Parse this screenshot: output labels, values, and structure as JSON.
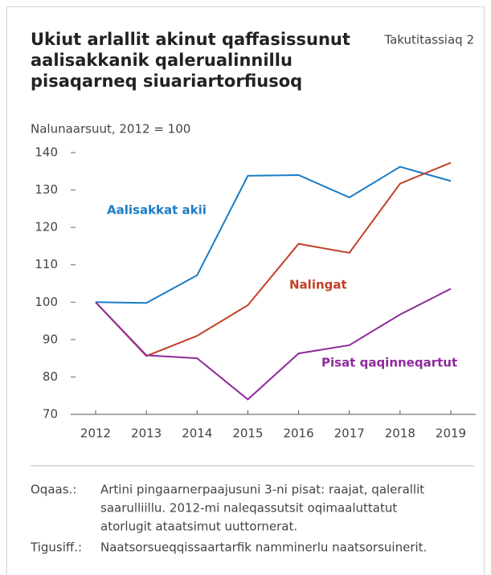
{
  "chart_data": {
    "type": "line",
    "title": [
      "Ukiut arlallit akinut qaffasissunut",
      "aalisakkanik qalerualinnillu",
      "pisaqarneq siuariartorfiusoq"
    ],
    "figure_label": "Takutitassiaq 2",
    "subtitle": "Nalunaarsuut, 2012 = 100",
    "categories": [
      "2012",
      "2013",
      "2014",
      "2015",
      "2016",
      "2017",
      "2018",
      "2019"
    ],
    "series": [
      {
        "name": "Aalisakkat akii",
        "color": "#1b7cc4",
        "values": [
          100,
          99.8,
          107.2,
          133.8,
          134,
          128,
          136.2,
          132.4
        ]
      },
      {
        "name": "Nalingat",
        "color": "#c2402a",
        "values": [
          100,
          85.6,
          91,
          99.2,
          115.6,
          113.2,
          131.7,
          137.3
        ]
      },
      {
        "name": "Pisat qaqinneqartut",
        "color": "#8e2b9b",
        "values": [
          100,
          85.8,
          85,
          74,
          86.3,
          88.5,
          96.7,
          103.6
        ]
      }
    ],
    "ylim": [
      70,
      140
    ],
    "yticks": [
      70,
      80,
      90,
      100,
      110,
      120,
      130,
      140
    ],
    "notes": [
      {
        "label": "Oqaas.:",
        "lines": [
          "Artini pingaarnerpaajusuni 3-ni pisat: raajat, qalerallit",
          "saarulliillu. 2012-mi naleqassutsit oqimaaluttatut",
          "atorlugit ataatsimut uuttornerat."
        ]
      },
      {
        "label": "Tigusiff.:",
        "lines": [
          "Naatsorsueqqissaartarfik namminerlu naatsorsuinerit."
        ]
      }
    ]
  }
}
